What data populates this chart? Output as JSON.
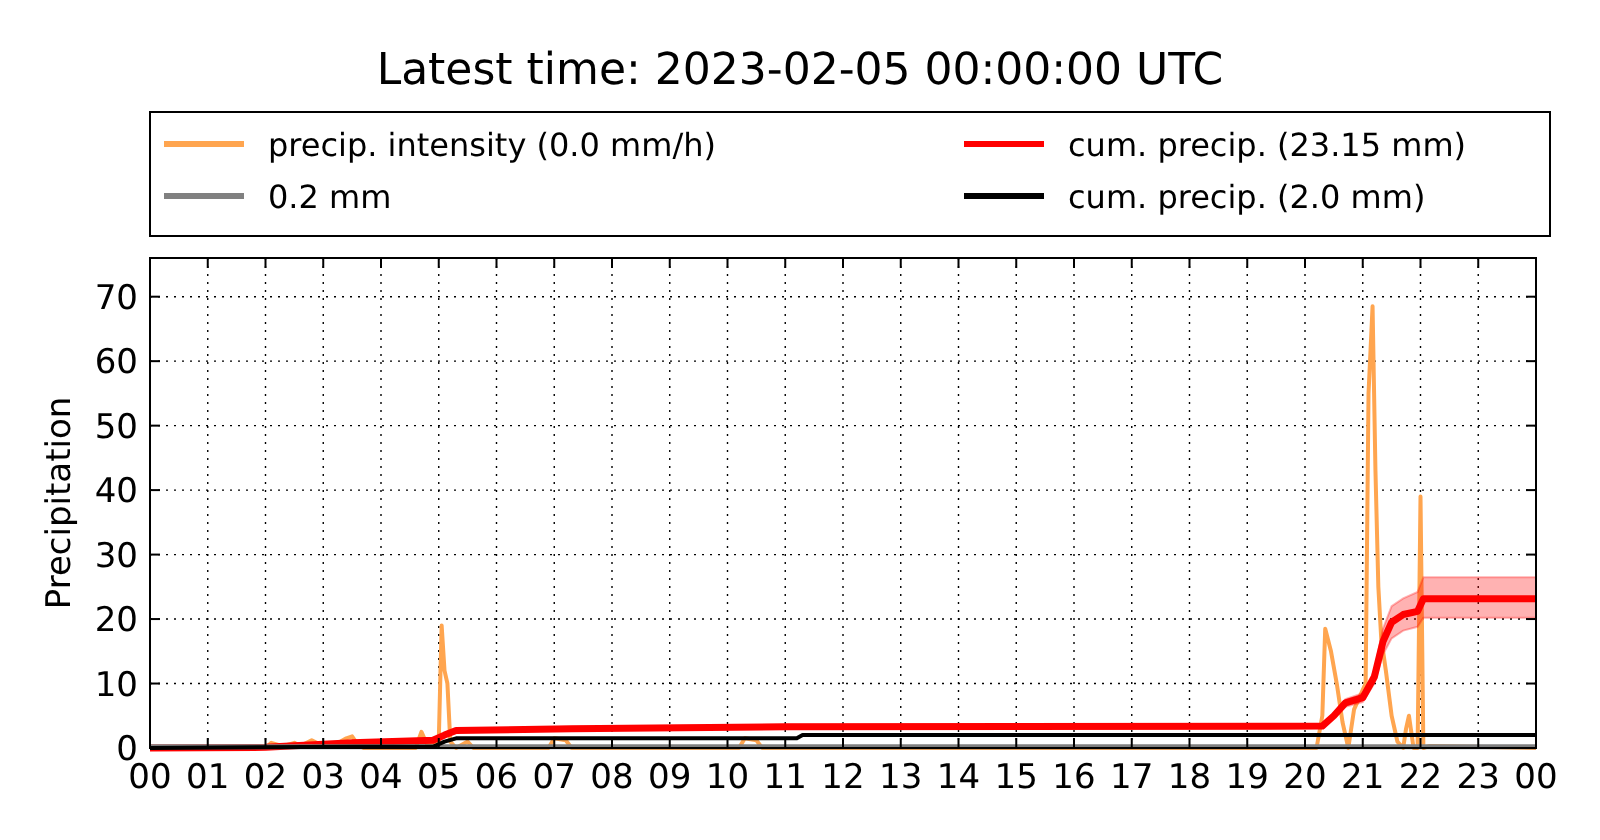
{
  "chart_data": {
    "type": "line",
    "title": "Latest time: 2023-02-05 00:00:00 UTC",
    "ylabel": "Precipitation",
    "xlim": [
      0,
      24
    ],
    "xticks": [
      {
        "value": 0,
        "label": "00"
      },
      {
        "value": 1,
        "label": "01"
      },
      {
        "value": 2,
        "label": "02"
      },
      {
        "value": 3,
        "label": "03"
      },
      {
        "value": 4,
        "label": "04"
      },
      {
        "value": 5,
        "label": "05"
      },
      {
        "value": 6,
        "label": "06"
      },
      {
        "value": 7,
        "label": "07"
      },
      {
        "value": 8,
        "label": "08"
      },
      {
        "value": 9,
        "label": "09"
      },
      {
        "value": 10,
        "label": "10"
      },
      {
        "value": 11,
        "label": "11"
      },
      {
        "value": 12,
        "label": "12"
      },
      {
        "value": 13,
        "label": "13"
      },
      {
        "value": 14,
        "label": "14"
      },
      {
        "value": 15,
        "label": "15"
      },
      {
        "value": 16,
        "label": "16"
      },
      {
        "value": 17,
        "label": "17"
      },
      {
        "value": 18,
        "label": "18"
      },
      {
        "value": 19,
        "label": "19"
      },
      {
        "value": 20,
        "label": "20"
      },
      {
        "value": 21,
        "label": "21"
      },
      {
        "value": 22,
        "label": "22"
      },
      {
        "value": 23,
        "label": "23"
      },
      {
        "value": 24,
        "label": "00"
      }
    ],
    "ylim": [
      0,
      76
    ],
    "yticks": [
      0,
      10,
      20,
      30,
      40,
      50,
      60,
      70
    ],
    "grid": true,
    "legend": "top",
    "line_style": "solid",
    "marker": "none",
    "series": [
      {
        "name": "precip. intensity (0.0 mm/h)",
        "color": "#ffa54f",
        "x": [
          0,
          2.0,
          2.1,
          2.3,
          2.5,
          2.6,
          2.8,
          3.0,
          3.2,
          3.4,
          3.5,
          3.6,
          3.7,
          4.6,
          4.7,
          4.8,
          4.9,
          5.0,
          5.05,
          5.1,
          5.15,
          5.2,
          5.3,
          5.5,
          5.6,
          6.9,
          7.0,
          7.2,
          7.3,
          10.2,
          10.3,
          10.5,
          10.6,
          20.2,
          20.3,
          20.35,
          20.45,
          20.55,
          20.65,
          20.75,
          20.85,
          20.95,
          21.05,
          21.1,
          21.17,
          21.22,
          21.27,
          21.32,
          21.4,
          21.5,
          21.6,
          21.7,
          21.75,
          21.8,
          21.88,
          21.95,
          22.0,
          22.05,
          22.15,
          24
        ],
        "values": [
          0,
          0,
          0.8,
          0.3,
          0.8,
          0.3,
          1.2,
          0.3,
          0.5,
          1.5,
          1.8,
          0.5,
          0,
          0,
          2.5,
          0.5,
          0.5,
          1,
          19,
          12,
          10,
          1,
          0,
          1,
          0,
          0,
          1.5,
          1.2,
          0,
          0,
          1.5,
          1.2,
          0,
          0,
          5,
          18.5,
          15,
          10,
          4,
          0,
          6,
          8,
          10,
          55,
          68.5,
          43,
          25,
          17,
          12,
          5,
          1,
          0,
          3,
          5,
          0,
          0,
          39,
          0,
          0.3,
          0
        ]
      },
      {
        "name": "cum. precip. (23.15 mm)",
        "color": "#ff0000",
        "x": [
          0,
          2.0,
          3.5,
          4.9,
          5.1,
          5.3,
          7.3,
          11.0,
          20.3,
          20.5,
          20.7,
          21.0,
          21.2,
          21.35,
          21.5,
          21.7,
          21.95,
          22.05,
          24
        ],
        "values": [
          0,
          0.1,
          0.8,
          1.2,
          2.0,
          2.7,
          3.0,
          3.3,
          3.4,
          5.0,
          7.0,
          7.8,
          11.0,
          16.5,
          19.5,
          20.7,
          21.2,
          23.15,
          23.15
        ],
        "lower": [
          0,
          0.1,
          0.7,
          1.1,
          1.8,
          2.5,
          2.7,
          3.0,
          3.1,
          4.6,
          6.4,
          7.1,
          10.0,
          14.5,
          17.0,
          18.2,
          18.8,
          20.2,
          20.2
        ],
        "upper": [
          0,
          0.1,
          0.9,
          1.3,
          2.2,
          2.9,
          3.3,
          3.6,
          3.7,
          5.4,
          7.6,
          8.5,
          12.0,
          18.5,
          22.0,
          23.2,
          24.2,
          26.5,
          26.5
        ]
      },
      {
        "name": "0.2 mm",
        "color": "#808080",
        "x": [
          0,
          24
        ],
        "values": [
          0.2,
          0.2
        ]
      },
      {
        "name": "cum. precip. (2.0 mm)",
        "color": "#000000",
        "x": [
          0,
          3.6,
          4.9,
          5.1,
          5.3,
          11.2,
          11.3,
          24
        ],
        "values": [
          0,
          0.2,
          0.2,
          1.0,
          1.5,
          1.5,
          2.0,
          2.0
        ]
      }
    ]
  }
}
